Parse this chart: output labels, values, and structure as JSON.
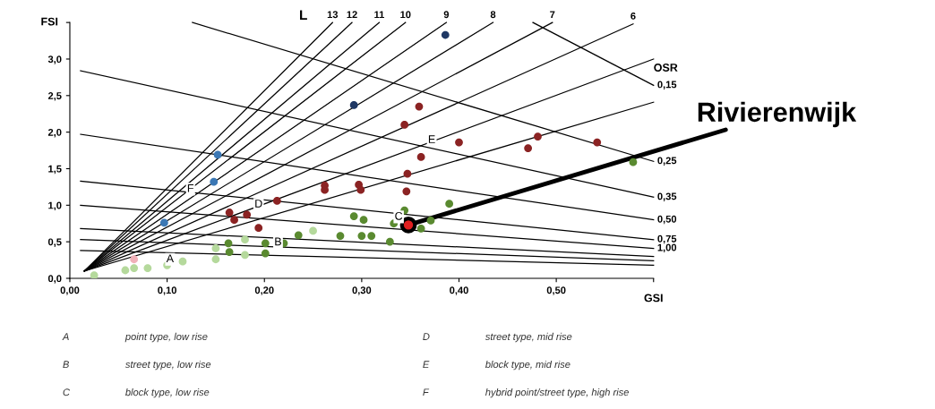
{
  "chart_data": {
    "type": "scatter",
    "xlabel": "GSI",
    "ylabel": "FSI",
    "xlim": [
      0,
      0.6
    ],
    "ylim": [
      0,
      3.5
    ],
    "xticks": [
      {
        "value": 0,
        "label": "0,00"
      },
      {
        "value": 0.1,
        "label": "0,10"
      },
      {
        "value": 0.2,
        "label": "0,20"
      },
      {
        "value": 0.3,
        "label": "0,30"
      },
      {
        "value": 0.4,
        "label": "0,40"
      },
      {
        "value": 0.5,
        "label": "0,50"
      },
      {
        "value": 0.6,
        "label": null
      }
    ],
    "yticks": [
      {
        "value": 0,
        "label": "0,0"
      },
      {
        "value": 0.5,
        "label": "0,5"
      },
      {
        "value": 1,
        "label": "1,0"
      },
      {
        "value": 1.5,
        "label": "1,5"
      },
      {
        "value": 2,
        "label": "2,0"
      },
      {
        "value": 2.5,
        "label": "2,5"
      },
      {
        "value": 3,
        "label": "3,0"
      },
      {
        "value": 3.5,
        "label": null
      }
    ],
    "grid": false,
    "marker": "circle",
    "series": [
      {
        "type": "line",
        "marker": "none",
        "name": "13",
        "color": "#000000",
        "x": [
          0.015,
          0.27
        ],
        "values": [
          0.1,
          3.5
        ]
      },
      {
        "type": "line",
        "marker": "none",
        "name": "12",
        "color": "#000000",
        "x": [
          0.015,
          0.29
        ],
        "values": [
          0.1,
          3.5
        ]
      },
      {
        "type": "line",
        "marker": "none",
        "name": "11",
        "color": "#000000",
        "x": [
          0.015,
          0.318
        ],
        "values": [
          0.1,
          3.5
        ]
      },
      {
        "type": "line",
        "marker": "none",
        "name": "10",
        "color": "#000000",
        "x": [
          0.015,
          0.345
        ],
        "values": [
          0.1,
          3.5
        ]
      },
      {
        "type": "line",
        "marker": "none",
        "name": "9",
        "color": "#000000",
        "x": [
          0.015,
          0.387
        ],
        "values": [
          0.1,
          3.5
        ]
      },
      {
        "type": "line",
        "marker": "none",
        "name": "8",
        "color": "#000000",
        "x": [
          0.015,
          0.435
        ],
        "values": [
          0.1,
          3.5
        ]
      },
      {
        "type": "line",
        "marker": "none",
        "name": "7",
        "color": "#000000",
        "x": [
          0.015,
          0.496
        ],
        "values": [
          0.1,
          3.5
        ]
      },
      {
        "type": "line",
        "marker": "none",
        "name": "6",
        "color": "#000000",
        "x": [
          0.015,
          0.579
        ],
        "values": [
          0.1,
          3.48
        ]
      },
      {
        "type": "line",
        "marker": "none",
        "color": "#000000",
        "x": [
          0.015,
          0.6
        ],
        "values": [
          0.1,
          3.0
        ]
      },
      {
        "type": "line",
        "marker": "none",
        "color": "#000000",
        "x": [
          0.015,
          0.6
        ],
        "values": [
          0.1,
          2.41
        ]
      },
      {
        "type": "line",
        "marker": "none",
        "name": "0,15",
        "color": "#000000",
        "x": [
          0.476,
          0.6
        ],
        "values": [
          3.5,
          2.64
        ]
      },
      {
        "type": "line",
        "marker": "none",
        "name": "0,25",
        "color": "#000000",
        "x": [
          0.126,
          0.6
        ],
        "values": [
          3.5,
          1.6
        ]
      },
      {
        "type": "line",
        "marker": "none",
        "name": "0,35",
        "color": "#000000",
        "x": [
          0.011,
          0.6
        ],
        "values": [
          2.84,
          1.11
        ]
      },
      {
        "type": "line",
        "marker": "none",
        "name": "0,50",
        "color": "#000000",
        "x": [
          0.011,
          0.6
        ],
        "values": [
          1.97,
          0.8
        ]
      },
      {
        "type": "line",
        "marker": "none",
        "name": "0,75",
        "color": "#000000",
        "x": [
          0.011,
          0.6
        ],
        "values": [
          1.33,
          0.53
        ]
      },
      {
        "type": "line",
        "marker": "none",
        "name": "1,00",
        "color": "#000000",
        "x": [
          0.011,
          0.6
        ],
        "values": [
          1.0,
          0.41
        ]
      },
      {
        "type": "line",
        "marker": "none",
        "color": "#000000",
        "x": [
          0.011,
          0.6
        ],
        "values": [
          0.68,
          0.3
        ]
      },
      {
        "type": "line",
        "marker": "none",
        "color": "#000000",
        "x": [
          0.011,
          0.6
        ],
        "values": [
          0.53,
          0.24
        ]
      },
      {
        "type": "line",
        "marker": "none",
        "color": "#000000",
        "x": [
          0.011,
          0.6
        ],
        "values": [
          0.38,
          0.18
        ]
      },
      {
        "color": "#1f3864",
        "x": [
          0.386,
          0.292
        ],
        "values": [
          3.33,
          2.37
        ]
      },
      {
        "color": "#3b78b5",
        "x": [
          0.152,
          0.148,
          0.097
        ],
        "values": [
          1.69,
          1.32,
          0.76
        ]
      },
      {
        "color": "#8b2323",
        "x": [
          0.359,
          0.344,
          0.4,
          0.361,
          0.347,
          0.346,
          0.481,
          0.471,
          0.542,
          0.262,
          0.262,
          0.297,
          0.299,
          0.213,
          0.164,
          0.169,
          0.182,
          0.194
        ],
        "values": [
          2.35,
          2.1,
          1.86,
          1.66,
          1.43,
          1.19,
          1.94,
          1.78,
          1.86,
          1.27,
          1.21,
          1.28,
          1.21,
          1.06,
          0.9,
          0.8,
          0.87,
          0.69
        ]
      },
      {
        "color": "#5a8a30",
        "x": [
          0.579,
          0.39,
          0.344,
          0.292,
          0.302,
          0.333,
          0.371,
          0.361,
          0.278,
          0.3,
          0.31,
          0.329,
          0.235,
          0.22,
          0.201,
          0.201,
          0.163,
          0.164
        ],
        "values": [
          1.59,
          1.02,
          0.93,
          0.85,
          0.8,
          0.75,
          0.79,
          0.68,
          0.58,
          0.58,
          0.58,
          0.5,
          0.59,
          0.48,
          0.48,
          0.34,
          0.48,
          0.36
        ]
      },
      {
        "color": "#b5d99c",
        "x": [
          0.25,
          0.18,
          0.18,
          0.15,
          0.15,
          0.116,
          0.1,
          0.08,
          0.066,
          0.057,
          0.025
        ],
        "values": [
          0.65,
          0.53,
          0.32,
          0.41,
          0.26,
          0.23,
          0.18,
          0.14,
          0.14,
          0.11,
          0.04
        ]
      },
      {
        "color": "#f0b0b8",
        "x": [
          0.066
        ],
        "values": [
          0.26
        ]
      },
      {
        "name": "Rivierenwijk",
        "color": "#e02020",
        "x": [
          0.348
        ],
        "values": [
          0.73
        ]
      }
    ],
    "annotations": [
      {
        "text": "A",
        "x": 0.103,
        "y": 0.26
      },
      {
        "text": "B",
        "x": 0.214,
        "y": 0.49
      },
      {
        "text": "C",
        "x": 0.338,
        "y": 0.84
      },
      {
        "text": "D",
        "x": 0.194,
        "y": 1.01
      },
      {
        "text": "E",
        "x": 0.372,
        "y": 1.89
      },
      {
        "text": "F",
        "x": 0.124,
        "y": 1.22
      },
      "L",
      "OSR",
      "A",
      "point type, low rise",
      "B",
      "street type, low rise",
      "C",
      "block type, low rise",
      "D",
      "street type, mid rise",
      "E",
      "block type, mid rise",
      "F",
      "hybrid point/street type, high rise"
    ]
  }
}
